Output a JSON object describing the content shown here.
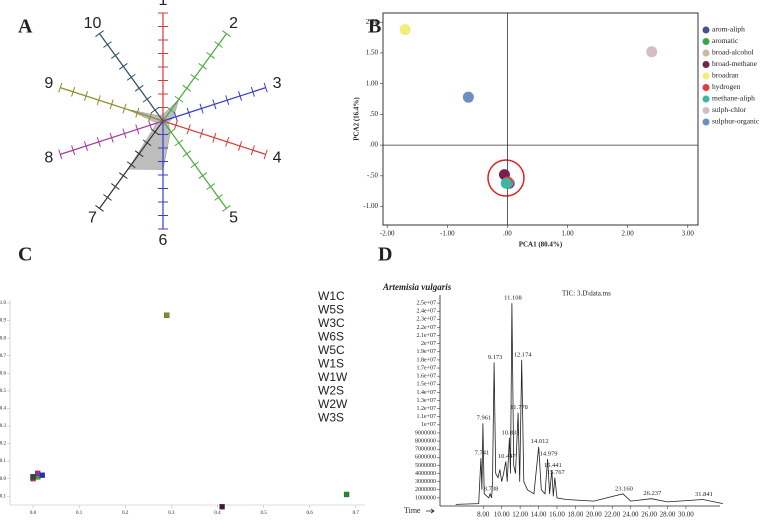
{
  "chart_data": [
    {
      "type": "radar",
      "label": "A",
      "categories": [
        "1",
        "2",
        "3",
        "4",
        "5",
        "6",
        "7",
        "8",
        "9",
        "10"
      ],
      "spoke_colors": [
        "#d23c3c",
        "#4aa83c",
        "#3c3cc8",
        "#d23c3c",
        "#4aa83c",
        "#3c3cc8",
        "#333333",
        "#a03ca0",
        "#8c8c28",
        "#2f4f5f"
      ],
      "values": [
        0.06,
        0.25,
        0.1,
        0.05,
        0.12,
        0.45,
        0.55,
        0.06,
        0.35,
        0.06
      ],
      "rlim": [
        0,
        1
      ],
      "rticks": [
        0.125,
        0.25,
        0.375,
        0.5,
        0.625,
        0.75,
        0.875,
        1
      ],
      "color": "#bdbdbd"
    },
    {
      "type": "scatter",
      "label": "B",
      "marker": "circle",
      "legend": "right",
      "xlabel": "PCA1 (80.4%)",
      "ylabel": "PCA2 (16.4%)",
      "xlim": [
        -2.07,
        3.17
      ],
      "ylim": [
        -1.3,
        2.15
      ],
      "xticks": [
        {
          "value": -2,
          "label": "-2.00"
        },
        {
          "value": -1,
          "label": "-1.00"
        },
        {
          "value": 0,
          "label": ".00"
        },
        {
          "value": 1,
          "label": "1.00"
        },
        {
          "value": 2,
          "label": "2.00"
        },
        {
          "value": 3,
          "label": "3.00"
        }
      ],
      "yticks": [
        {
          "value": -1,
          "label": "-1.00"
        },
        {
          "value": -0.5,
          "label": "-.50"
        },
        {
          "value": 0,
          "label": ".00"
        },
        {
          "value": 0.5,
          "label": ".50"
        },
        {
          "value": 1,
          "label": "1.00"
        },
        {
          "value": 1.5,
          "label": "1.50"
        },
        {
          "value": 2,
          "label": "2.00"
        }
      ],
      "series": [
        {
          "name": "arom-aliph",
          "color": "#4b4f91",
          "x": [
            0.03
          ],
          "values": [
            -0.62
          ]
        },
        {
          "name": "aromatic",
          "color": "#3aa54a",
          "x": [
            0.0
          ],
          "values": [
            -0.62
          ]
        },
        {
          "name": "broad-alcohol",
          "color": "#c9bc98",
          "x": [
            0.01
          ],
          "values": [
            -0.6
          ]
        },
        {
          "name": "broad-methane",
          "color": "#7a1f4b",
          "x": [
            -0.05
          ],
          "values": [
            -0.48
          ]
        },
        {
          "name": "broadran",
          "color": "#f2ee78",
          "x": [
            -1.7
          ],
          "values": [
            1.88
          ]
        },
        {
          "name": "hydrogen",
          "color": "#e33b3b",
          "x": [
            0.0
          ],
          "values": [
            -0.6
          ]
        },
        {
          "name": "methane-aliph",
          "color": "#3ab5a8",
          "x": [
            -0.02
          ],
          "values": [
            -0.62
          ]
        },
        {
          "name": "sulph-chlor",
          "color": "#d3bcc4",
          "x": [
            2.4
          ],
          "values": [
            1.52
          ]
        },
        {
          "name": "sulphur-organic",
          "color": "#6b8fc4",
          "x": [
            -0.65
          ],
          "values": [
            0.78
          ]
        }
      ]
    },
    {
      "type": "scatter",
      "label": "C",
      "marker": "square",
      "legend": "text",
      "xlim": [
        -0.05,
        0.72
      ],
      "ylim": [
        -0.15,
        1.0
      ],
      "xticks": [
        {
          "value": 0,
          "label": "0.0"
        },
        0.1,
        0.2,
        0.3,
        0.4,
        0.5,
        0.6,
        0.7
      ],
      "yticks": [
        -0.1,
        {
          "value": 0,
          "label": "0.0"
        },
        0.1,
        0.2,
        0.3,
        0.4,
        0.5,
        0.6,
        0.7,
        0.8,
        0.9,
        {
          "value": 1,
          "label": "1.0"
        }
      ],
      "series": [
        {
          "name": "W1C",
          "color": "#8b1a2b",
          "x": [
            0.0
          ],
          "values": [
            0.01
          ]
        },
        {
          "name": "W5S",
          "color": "#1f8a2a",
          "x": [
            0.68
          ],
          "values": [
            -0.09
          ]
        },
        {
          "name": "W3C",
          "color": "#1f2a7a",
          "x": [
            0.01
          ],
          "values": [
            0.02
          ]
        },
        {
          "name": "W6S",
          "color": "#e02a2a",
          "x": [
            0.0
          ],
          "values": [
            0.0
          ]
        },
        {
          "name": "W5C",
          "color": "#3aa53a",
          "x": [
            0.01
          ],
          "values": [
            0.01
          ]
        },
        {
          "name": "W1S",
          "color": "#2a2ad0",
          "x": [
            0.02
          ],
          "values": [
            0.02
          ]
        },
        {
          "name": "W1W",
          "color": "#4a1040",
          "x": [
            0.41
          ],
          "values": [
            -0.16
          ]
        },
        {
          "name": "W2S",
          "color": "#9a2a9a",
          "x": [
            0.01
          ],
          "values": [
            0.03
          ]
        },
        {
          "name": "W2W",
          "color": "#8a8a20",
          "x": [
            0.29
          ],
          "values": [
            0.93
          ]
        },
        {
          "name": "W3S",
          "color": "#2a4a4a",
          "x": [
            0.0
          ],
          "values": [
            0.01
          ]
        }
      ]
    },
    {
      "type": "line",
      "label": "D",
      "title": "Artemisia vulgaris",
      "subtitle": "TIC: 3.D\\data.ms",
      "xlabel": "Time",
      "color": "#222222",
      "xlim": [
        3.3,
        33.7
      ],
      "ylim": [
        0,
        26000000
      ],
      "xticks": [
        {
          "value": 8,
          "label": "8.00"
        },
        {
          "value": 10,
          "label": "10.00"
        },
        {
          "value": 12,
          "label": "12.00"
        },
        {
          "value": 14,
          "label": "14.00"
        },
        {
          "value": 16,
          "label": "16.00"
        },
        {
          "value": 18,
          "label": "18.00"
        },
        {
          "value": 20,
          "label": "20.00"
        },
        {
          "value": 22,
          "label": "22.00"
        },
        {
          "value": 24,
          "label": "24.00"
        },
        {
          "value": 26,
          "label": "26.00"
        },
        {
          "value": 28,
          "label": "28.00"
        },
        {
          "value": 30,
          "label": "30.00"
        }
      ],
      "yticks": [
        1000000,
        2000000,
        3000000,
        4000000,
        5000000,
        6000000,
        7000000,
        8000000,
        9000000,
        {
          "value": 10000000,
          "label": "1e+07"
        },
        {
          "value": 11000000,
          "label": "1.1e+07"
        },
        {
          "value": 12000000,
          "label": "1.2e+07"
        },
        {
          "value": 13000000,
          "label": "1.3e+07"
        },
        {
          "value": 14000000,
          "label": "1.4e+07"
        },
        {
          "value": 15000000,
          "label": "1.5e+07"
        },
        {
          "value": 16000000,
          "label": "1.6e+07"
        },
        {
          "value": 17000000,
          "label": "1.7e+07"
        },
        {
          "value": 18000000,
          "label": "1.8e+07"
        },
        {
          "value": 19000000,
          "label": "1.9e+07"
        },
        {
          "value": 20000000,
          "label": "2e+07"
        },
        {
          "value": 21000000,
          "label": "2.1e+07"
        },
        {
          "value": 22000000,
          "label": "2.2e+07"
        },
        {
          "value": 23000000,
          "label": "2.3e+07"
        },
        {
          "value": 24000000,
          "label": "2.4e+07"
        },
        {
          "value": 25000000,
          "label": "2.5e+07"
        }
      ],
      "x": [
        5,
        7.5,
        7.74,
        7.85,
        7.96,
        8.1,
        8.6,
        8.74,
        8.9,
        9.0,
        9.173,
        9.35,
        9.6,
        9.8,
        10.0,
        10.2,
        10.447,
        10.6,
        10.833,
        10.95,
        11.108,
        11.3,
        11.5,
        11.778,
        11.95,
        12.174,
        12.4,
        12.8,
        13.5,
        14.012,
        14.3,
        14.7,
        14.979,
        15.2,
        15.441,
        15.6,
        15.767,
        16.0,
        17.0,
        20.0,
        23.16,
        24,
        26.237,
        28,
        31.841,
        34
      ],
      "values": [
        200000,
        300000,
        5900000,
        2000000,
        10200000,
        1500000,
        1000000,
        1500000,
        1000000,
        3000000,
        17700000,
        4000000,
        3500000,
        4500000,
        3000000,
        4000000,
        5500000,
        3000000,
        8400000,
        4000000,
        25000000,
        5000000,
        4000000,
        11500000,
        3000000,
        18000000,
        3000000,
        2000000,
        1500000,
        7300000,
        2000000,
        1500000,
        5800000,
        1500000,
        4400000,
        1200000,
        3500000,
        1000000,
        800000,
        600000,
        1500000,
        600000,
        900000,
        500000,
        800000,
        300000
      ],
      "annotations": [
        {
          "text": "11.108",
          "x": 11.108,
          "y": 25000000
        },
        {
          "text": "9.173",
          "x": 9.173,
          "y": 17700000
        },
        {
          "text": "12.174",
          "x": 12.174,
          "y": 18000000
        },
        {
          "text": "11.778",
          "x": 11.778,
          "y": 11500000
        },
        {
          "text": "7.961",
          "x": 7.96,
          "y": 10200000
        },
        {
          "text": "10.833",
          "x": 10.833,
          "y": 8400000
        },
        {
          "text": "14.012",
          "x": 14.012,
          "y": 7300000
        },
        {
          "text": "7.741",
          "x": 7.74,
          "y": 5900000
        },
        {
          "text": "10.447",
          "x": 10.447,
          "y": 5500000
        },
        {
          "text": "14.979",
          "x": 14.979,
          "y": 5800000
        },
        {
          "text": "15.441",
          "x": 15.441,
          "y": 4400000
        },
        {
          "text": "15.767",
          "x": 15.767,
          "y": 3500000
        },
        {
          "text": "8.738",
          "x": 8.74,
          "y": 1500000
        },
        {
          "text": "23.160",
          "x": 23.16,
          "y": 1500000
        },
        {
          "text": "26.237",
          "x": 26.237,
          "y": 900000
        },
        {
          "text": "31.841",
          "x": 31.841,
          "y": 800000
        }
      ]
    }
  ]
}
